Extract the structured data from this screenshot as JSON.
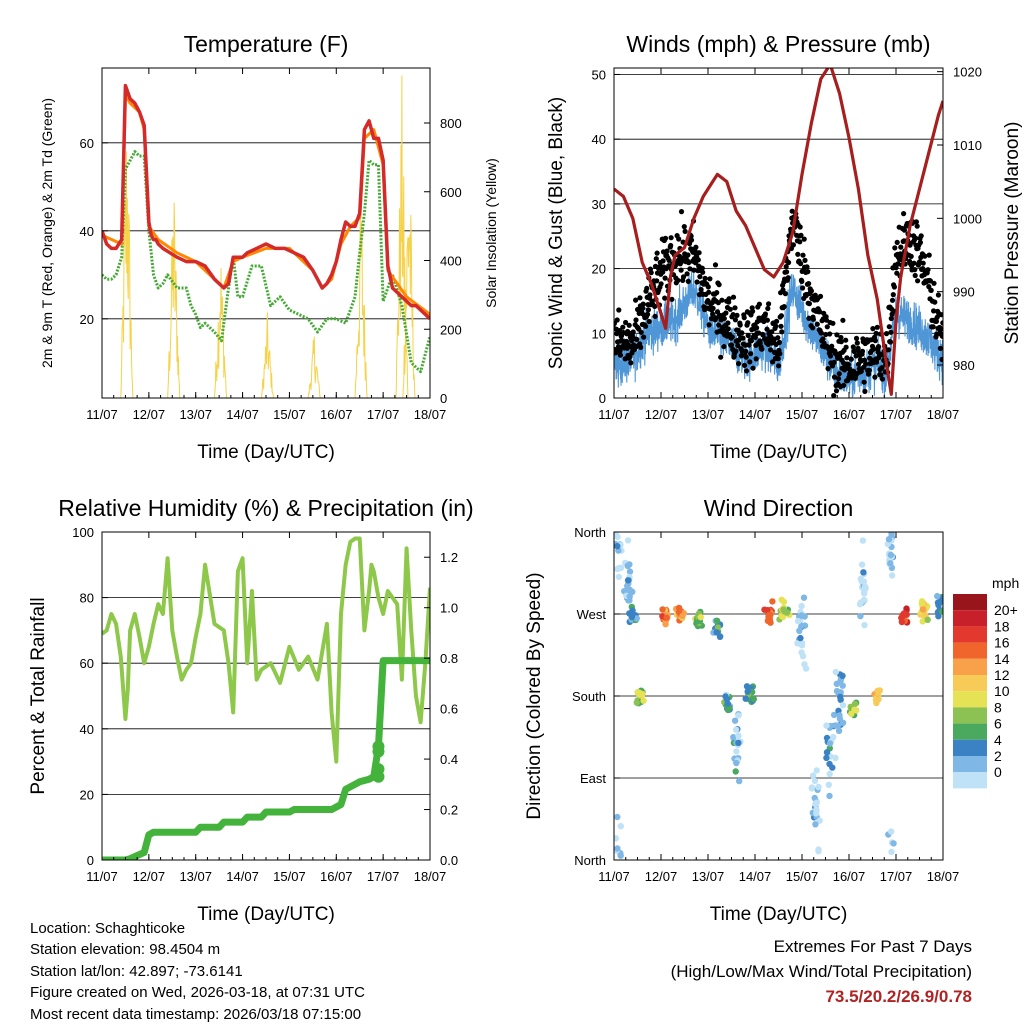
{
  "colors": {
    "temp2m": "#d42a2a",
    "temp9m": "#ff8800",
    "dewpoint": "#44aa33",
    "solar": "#f5d247",
    "wind": "#4f96d6",
    "gust": "#000000",
    "pressure": "#a61e1e",
    "rh": "#8ec84a",
    "precip": "#44b33c",
    "extremes": "#b22222"
  },
  "chart_data": [
    {
      "id": "temperature",
      "type": "line",
      "title": "Temperature (F)",
      "xlabel": "Time (Day/UTC)",
      "ylabel": "2m & 9m T (Red, Orange) & 2m Td (Green)",
      "ylabel_right": "Solar Insolation (Yellow)",
      "xlim": [
        0,
        7
      ],
      "ylim": [
        2,
        77
      ],
      "ylim_right": [
        0,
        960
      ],
      "xticks": [
        0,
        1,
        2,
        3,
        4,
        5,
        6,
        7
      ],
      "xtick_labels": [
        "11/07",
        "12/07",
        "13/07",
        "14/07",
        "15/07",
        "16/07",
        "17/07",
        "18/07"
      ],
      "yticks": [
        20,
        40,
        60
      ],
      "yticks_right": [
        0,
        200,
        400,
        600,
        800
      ],
      "gridlines": [
        20,
        40,
        60
      ],
      "series": [
        {
          "name": "2m T",
          "axis": "left",
          "x": [
            0,
            0.1,
            0.2,
            0.3,
            0.42,
            0.5,
            0.6,
            0.7,
            0.8,
            0.9,
            1.0,
            1.05,
            1.1,
            1.15,
            1.2,
            1.3,
            1.45,
            1.6,
            1.8,
            2.0,
            2.2,
            2.4,
            2.6,
            2.7,
            2.8,
            2.9,
            3.0,
            3.1,
            3.3,
            3.5,
            3.7,
            3.9,
            4.1,
            4.3,
            4.5,
            4.6,
            4.7,
            4.8,
            4.9,
            5.0,
            5.1,
            5.2,
            5.3,
            5.4,
            5.5,
            5.6,
            5.7,
            5.8,
            5.9,
            6.0,
            6.1,
            6.2,
            6.3,
            6.4,
            6.5,
            6.6,
            6.7,
            6.8,
            6.9,
            7.0
          ],
          "values": [
            40,
            37,
            36,
            36,
            38,
            73,
            70,
            69,
            67,
            64,
            42,
            39,
            38,
            38,
            37,
            36,
            35,
            34,
            33,
            33,
            32,
            29,
            27,
            28,
            34,
            34,
            34,
            35,
            36,
            37,
            36,
            36,
            35,
            34,
            31,
            29,
            27,
            28,
            30,
            33,
            38,
            42,
            41,
            41,
            44,
            63,
            65,
            61,
            61,
            56,
            32,
            27,
            26,
            25,
            24,
            23,
            23,
            22,
            21,
            20
          ]
        },
        {
          "name": "9m T",
          "axis": "left",
          "x": [
            0,
            0.42,
            0.5,
            0.6,
            0.8,
            0.9,
            1.0,
            1.2,
            1.6,
            2.0,
            2.4,
            2.6,
            2.8,
            3.0,
            3.5,
            4.0,
            4.5,
            4.7,
            4.9,
            5.1,
            5.3,
            5.5,
            5.6,
            5.8,
            6.0,
            6.1,
            6.5,
            7.0
          ],
          "values": [
            39,
            37,
            71,
            69,
            67,
            63,
            41,
            38,
            35,
            33,
            29,
            27,
            33,
            34,
            36,
            36,
            31,
            27,
            29,
            37,
            41,
            43,
            61,
            63,
            55,
            31,
            25,
            21
          ]
        },
        {
          "name": "2m Td",
          "axis": "left",
          "x": [
            0,
            0.1,
            0.2,
            0.3,
            0.42,
            0.5,
            0.6,
            0.7,
            0.8,
            0.9,
            1.0,
            1.1,
            1.2,
            1.3,
            1.4,
            1.6,
            1.8,
            1.9,
            2.0,
            2.1,
            2.2,
            2.4,
            2.55,
            2.7,
            2.8,
            2.9,
            3.0,
            3.2,
            3.4,
            3.6,
            3.8,
            4.0,
            4.2,
            4.4,
            4.6,
            4.8,
            5.0,
            5.2,
            5.4,
            5.5,
            5.6,
            5.7,
            5.8,
            5.9,
            6.0,
            6.2,
            6.4,
            6.6,
            6.8,
            7.0
          ],
          "values": [
            30,
            29,
            29,
            30,
            34,
            54,
            56,
            58,
            57,
            57,
            40,
            30,
            27,
            28,
            30,
            27,
            27,
            23,
            21,
            18,
            19,
            17,
            15,
            27,
            34,
            25,
            25,
            32,
            32,
            23,
            25,
            22,
            21,
            20,
            17,
            20,
            20,
            19,
            25,
            35,
            44,
            56,
            55,
            55,
            24,
            30,
            23,
            10,
            8,
            16
          ]
        },
        {
          "name": "Solar Insolation",
          "axis": "right",
          "peaks": [
            {
              "x": 0.53,
              "value": 920
            },
            {
              "x": 1.53,
              "value": 680
            },
            {
              "x": 2.53,
              "value": 480
            },
            {
              "x": 3.53,
              "value": 250
            },
            {
              "x": 4.53,
              "value": 200
            },
            {
              "x": 5.53,
              "value": 640
            },
            {
              "x": 6.4,
              "value": 950
            },
            {
              "x": 6.55,
              "value": 810
            }
          ]
        }
      ]
    },
    {
      "id": "winds",
      "type": "line",
      "title": "Winds (mph) & Pressure (mb)",
      "xlabel": "Time (Day/UTC)",
      "ylabel": "Sonic Wind & Gust (Blue, Black)",
      "ylabel_right": "Station Pressure (Maroon)",
      "xlim": [
        0,
        7
      ],
      "ylim": [
        0,
        51
      ],
      "ylim_right": [
        975.5,
        1020.5
      ],
      "xticks": [
        0,
        1,
        2,
        3,
        4,
        5,
        6,
        7
      ],
      "xtick_labels": [
        "11/07",
        "12/07",
        "13/07",
        "14/07",
        "15/07",
        "16/07",
        "17/07",
        "18/07"
      ],
      "yticks": [
        0,
        10,
        20,
        30,
        40,
        50
      ],
      "yticks_right": [
        980,
        990,
        1000,
        1010,
        1020
      ],
      "gridlines": [
        10,
        20,
        30,
        40,
        50
      ],
      "series": [
        {
          "name": "Sonic Wind",
          "axis": "left",
          "x": [
            0,
            0.4,
            0.7,
            1.0,
            1.3,
            1.7,
            2.0,
            2.5,
            2.8,
            3.2,
            3.5,
            3.8,
            4.1,
            4.4,
            4.7,
            5.0,
            5.3,
            5.6,
            5.8,
            6.0,
            6.3,
            6.6,
            6.9,
            7.0
          ],
          "values": [
            5,
            6,
            10,
            11,
            12,
            17,
            11,
            8,
            6,
            8,
            5,
            17,
            12,
            8,
            4,
            3,
            4,
            5,
            4,
            13,
            12,
            10,
            7,
            6
          ]
        },
        {
          "name": "Gust",
          "axis": "left",
          "x": [
            0,
            0.4,
            0.7,
            1.0,
            1.3,
            1.7,
            2.0,
            2.5,
            2.8,
            3.2,
            3.5,
            3.8,
            4.1,
            4.4,
            4.7,
            5.0,
            5.3,
            5.6,
            5.8,
            6.0,
            6.3,
            6.6,
            6.9,
            7.0
          ],
          "values": [
            9,
            8,
            14,
            19,
            22,
            22,
            15,
            11,
            9,
            11,
            8,
            28,
            18,
            11,
            6,
            5,
            6,
            7,
            6,
            22,
            25,
            20,
            11,
            9
          ]
        },
        {
          "name": "Station Pressure",
          "axis": "right",
          "x": [
            0,
            0.2,
            0.4,
            0.6,
            0.8,
            1.0,
            1.1,
            1.2,
            1.3,
            1.5,
            1.7,
            1.9,
            2.1,
            2.2,
            2.4,
            2.6,
            2.8,
            3.0,
            3.2,
            3.4,
            3.6,
            3.8,
            4.0,
            4.2,
            4.4,
            4.6,
            4.8,
            5.0,
            5.2,
            5.4,
            5.6,
            5.8,
            5.9,
            6.0,
            6.1,
            6.3,
            6.5,
            6.7,
            6.9,
            7.0
          ],
          "values": [
            1004,
            1003,
            1000,
            994,
            991,
            987,
            985,
            992,
            995,
            996,
            1000,
            1003,
            1005,
            1006,
            1005,
            1001,
            999,
            996,
            993,
            992,
            994,
            998,
            1006,
            1013,
            1019,
            1021,
            1017,
            1011,
            1004,
            995,
            989,
            980,
            976,
            986,
            992,
            999,
            1004,
            1009,
            1014,
            1016
          ]
        }
      ]
    },
    {
      "id": "humidity",
      "type": "line",
      "title": "Relative Humidity (%) & Precipitation (in)",
      "xlabel": "Time (Day/UTC)",
      "ylabel": "Percent & Total Rainfall",
      "xlim": [
        0,
        7
      ],
      "ylim": [
        0,
        100
      ],
      "ylim_right": [
        0,
        1.3
      ],
      "xticks": [
        0,
        1,
        2,
        3,
        4,
        5,
        6,
        7
      ],
      "xtick_labels": [
        "11/07",
        "12/07",
        "13/07",
        "14/07",
        "15/07",
        "16/07",
        "17/07",
        "18/07"
      ],
      "yticks": [
        0,
        20,
        40,
        60,
        80,
        100
      ],
      "yticks_right": [
        0.0,
        0.2,
        0.4,
        0.6,
        0.8,
        1.0,
        1.2
      ],
      "gridlines": [
        20,
        40,
        60,
        80
      ],
      "series": [
        {
          "name": "Relative Humidity",
          "axis": "left",
          "x": [
            0,
            0.1,
            0.2,
            0.3,
            0.4,
            0.5,
            0.55,
            0.6,
            0.7,
            0.8,
            0.9,
            1.0,
            1.1,
            1.2,
            1.3,
            1.4,
            1.5,
            1.6,
            1.7,
            1.8,
            1.9,
            2.0,
            2.1,
            2.2,
            2.4,
            2.6,
            2.7,
            2.8,
            2.9,
            3.0,
            3.1,
            3.2,
            3.3,
            3.4,
            3.6,
            3.8,
            4.0,
            4.2,
            4.4,
            4.6,
            4.8,
            4.9,
            5.0,
            5.1,
            5.2,
            5.3,
            5.4,
            5.5,
            5.6,
            5.7,
            5.75,
            5.8,
            5.9,
            6.0,
            6.1,
            6.2,
            6.3,
            6.4,
            6.5,
            6.6,
            6.7,
            6.8,
            6.9,
            7.0
          ],
          "values": [
            69,
            70,
            75,
            72,
            62,
            43,
            52,
            70,
            75,
            68,
            60,
            65,
            72,
            78,
            75,
            92,
            70,
            62,
            55,
            58,
            60,
            68,
            75,
            90,
            72,
            70,
            60,
            45,
            88,
            92,
            60,
            82,
            55,
            58,
            60,
            54,
            65,
            58,
            62,
            55,
            72,
            45,
            30,
            75,
            90,
            97,
            98,
            98,
            70,
            82,
            90,
            88,
            80,
            75,
            82,
            80,
            78,
            55,
            95,
            70,
            50,
            42,
            60,
            83
          ]
        },
        {
          "name": "Total Precipitation",
          "axis": "right",
          "x": [
            0,
            0.5,
            0.6,
            0.9,
            1.0,
            1.1,
            1.2,
            2.0,
            2.1,
            2.5,
            2.6,
            3.0,
            3.1,
            3.4,
            3.5,
            4.0,
            4.1,
            4.9,
            5.0,
            5.1,
            5.2,
            5.4,
            5.5,
            5.7,
            5.8,
            5.9,
            6.0,
            6.5,
            7.0
          ],
          "values": [
            0,
            0,
            0.005,
            0.03,
            0.1,
            0.11,
            0.11,
            0.11,
            0.13,
            0.13,
            0.15,
            0.15,
            0.17,
            0.17,
            0.19,
            0.19,
            0.2,
            0.2,
            0.21,
            0.22,
            0.28,
            0.3,
            0.31,
            0.32,
            0.33,
            0.45,
            0.79,
            0.79,
            0.79
          ]
        }
      ]
    },
    {
      "id": "wind_direction",
      "type": "scatter",
      "title": "Wind Direction",
      "xlabel": "Time (Day/UTC)",
      "ylabel": "Direction (Colored By Speed)",
      "xlim": [
        0,
        7
      ],
      "ylim": [
        0,
        360
      ],
      "xticks": [
        0,
        1,
        2,
        3,
        4,
        5,
        6,
        7
      ],
      "xtick_labels": [
        "11/07",
        "12/07",
        "13/07",
        "14/07",
        "15/07",
        "16/07",
        "17/07",
        "18/07"
      ],
      "yticks": [
        0,
        90,
        180,
        270,
        360
      ],
      "ytick_labels": [
        "North",
        "East",
        "South",
        "West",
        "North"
      ],
      "gridlines": [
        90,
        180,
        270
      ],
      "colorbar_title": "mph",
      "colorbar_labels": [
        "20+",
        "18",
        "16",
        "14",
        "12",
        "10",
        "8",
        "6",
        "4",
        "2",
        "0"
      ],
      "colorbar_colors": [
        "#99151c",
        "#c8202b",
        "#e2382e",
        "#f0652b",
        "#f9a04b",
        "#f8cb58",
        "#e5e355",
        "#8cc154",
        "#4aa95f",
        "#3b82c4",
        "#7fb8e6",
        "#bfe2f6"
      ],
      "clusters": [
        {
          "x": 0.1,
          "direction": 350,
          "speed": 2
        },
        {
          "x": 0.3,
          "direction": 300,
          "speed": 3
        },
        {
          "x": 0.4,
          "direction": 268,
          "speed": 6
        },
        {
          "x": 0.55,
          "direction": 180,
          "speed": 10
        },
        {
          "x": 1.1,
          "direction": 268,
          "speed": 16
        },
        {
          "x": 1.4,
          "direction": 270,
          "speed": 15
        },
        {
          "x": 1.8,
          "direction": 265,
          "speed": 8
        },
        {
          "x": 2.2,
          "direction": 255,
          "speed": 5
        },
        {
          "x": 2.4,
          "direction": 170,
          "speed": 6
        },
        {
          "x": 2.6,
          "direction": 130,
          "speed": 3
        },
        {
          "x": 2.9,
          "direction": 180,
          "speed": 7
        },
        {
          "x": 3.3,
          "direction": 270,
          "speed": 17
        },
        {
          "x": 3.6,
          "direction": 275,
          "speed": 10
        },
        {
          "x": 4.0,
          "direction": 250,
          "speed": 2
        },
        {
          "x": 4.3,
          "direction": 60,
          "speed": 2
        },
        {
          "x": 4.6,
          "direction": 120,
          "speed": 3
        },
        {
          "x": 4.8,
          "direction": 180,
          "speed": 4
        },
        {
          "x": 5.1,
          "direction": 165,
          "speed": 9
        },
        {
          "x": 5.3,
          "direction": 300,
          "speed": 2
        },
        {
          "x": 5.6,
          "direction": 180,
          "speed": 13
        },
        {
          "x": 5.9,
          "direction": 350,
          "speed": 2
        },
        {
          "x": 6.2,
          "direction": 265,
          "speed": 19
        },
        {
          "x": 6.6,
          "direction": 272,
          "speed": 12
        },
        {
          "x": 6.95,
          "direction": 280,
          "speed": 5
        }
      ]
    }
  ],
  "info": {
    "location": "Location: Schaghticoke",
    "elevation": "Station elevation: 98.4504 m",
    "latlon": "Station lat/lon: 42.897; -73.6141",
    "created": "Figure created on Wed, 2026-03-18, at 07:31 UTC",
    "recent": "Most recent data timestamp: 2026/03/18 07:15:00"
  },
  "extremes": {
    "title": "Extremes For Past 7 Days",
    "subtitle": "(High/Low/Max Wind/Total Precipitation)",
    "values": "73.5/20.2/26.9/0.78"
  }
}
